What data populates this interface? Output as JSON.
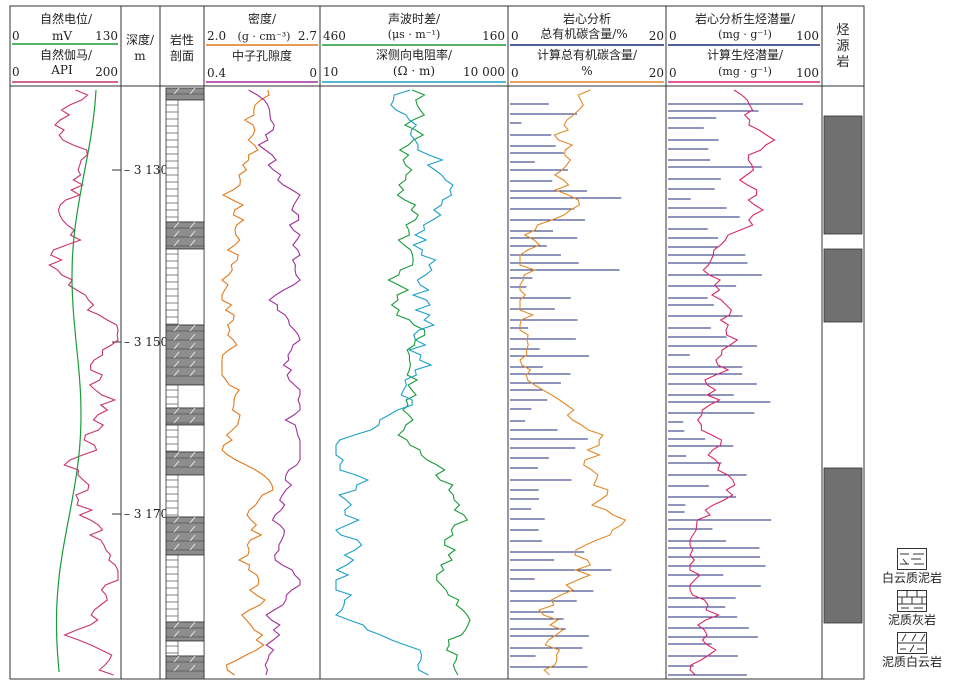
{
  "tracks": {
    "sp": {
      "title": "自然电位/",
      "unit": "mV",
      "min": "0",
      "max": "130",
      "color": "#1a9a3a"
    },
    "gr": {
      "title": "自然伽马/",
      "unit": "API",
      "min": "0",
      "max": "200",
      "color": "#c8326e"
    },
    "depth": {
      "title": "深度/",
      "unit": "m",
      "ticks": [
        "3 130",
        "3 150",
        "3 170"
      ]
    },
    "lith": {
      "title_line1": "岩性",
      "title_line2": "剖面"
    },
    "den": {
      "title": "密度/",
      "unit": "(g · cm⁻³)",
      "min": "2.0",
      "max": "2.7",
      "color": "#e07a1e"
    },
    "cnl": {
      "title": "中子孔隙度",
      "min": "0.4",
      "max": "0",
      "color": "#a0309a"
    },
    "ac": {
      "title": "声波时差/",
      "unit": "(μs · m⁻¹)",
      "min": "460",
      "max": "160",
      "color": "#1a9a3a"
    },
    "rd": {
      "title": "深侧向电阻率/",
      "unit": "(Ω · m)",
      "min": "10",
      "max": "10 000",
      "color": "#1aa0c8"
    },
    "toc": {
      "title": "岩心分析",
      "subtitle": "总有机碳含量/%",
      "min": "0",
      "max": "20",
      "calc_title": "计算总有机碳含量/",
      "calc_unit": "%",
      "calc_min": "0",
      "calc_max": "20",
      "bar_color": "#1c2a78",
      "curve_color": "#e08a2a"
    },
    "s2": {
      "title": "岩心分析生烃潜量/",
      "unit": "(mg · g⁻¹)",
      "min": "0",
      "max": "100",
      "calc_title": "计算生烃潜量/",
      "calc_unit": "(mg · g⁻¹)",
      "calc_min": "0",
      "calc_max": "100",
      "bar_color": "#1c2a78",
      "curve_color": "#d8286e"
    },
    "src": {
      "title": "烃源岩"
    }
  },
  "legend": [
    {
      "label": "白云质泥岩",
      "pattern": "dolomitic-mudstone"
    },
    {
      "label": "泥质灰岩",
      "pattern": "argillaceous-limestone"
    },
    {
      "label": "泥质白云岩",
      "pattern": "argillaceous-dolomite"
    }
  ]
}
